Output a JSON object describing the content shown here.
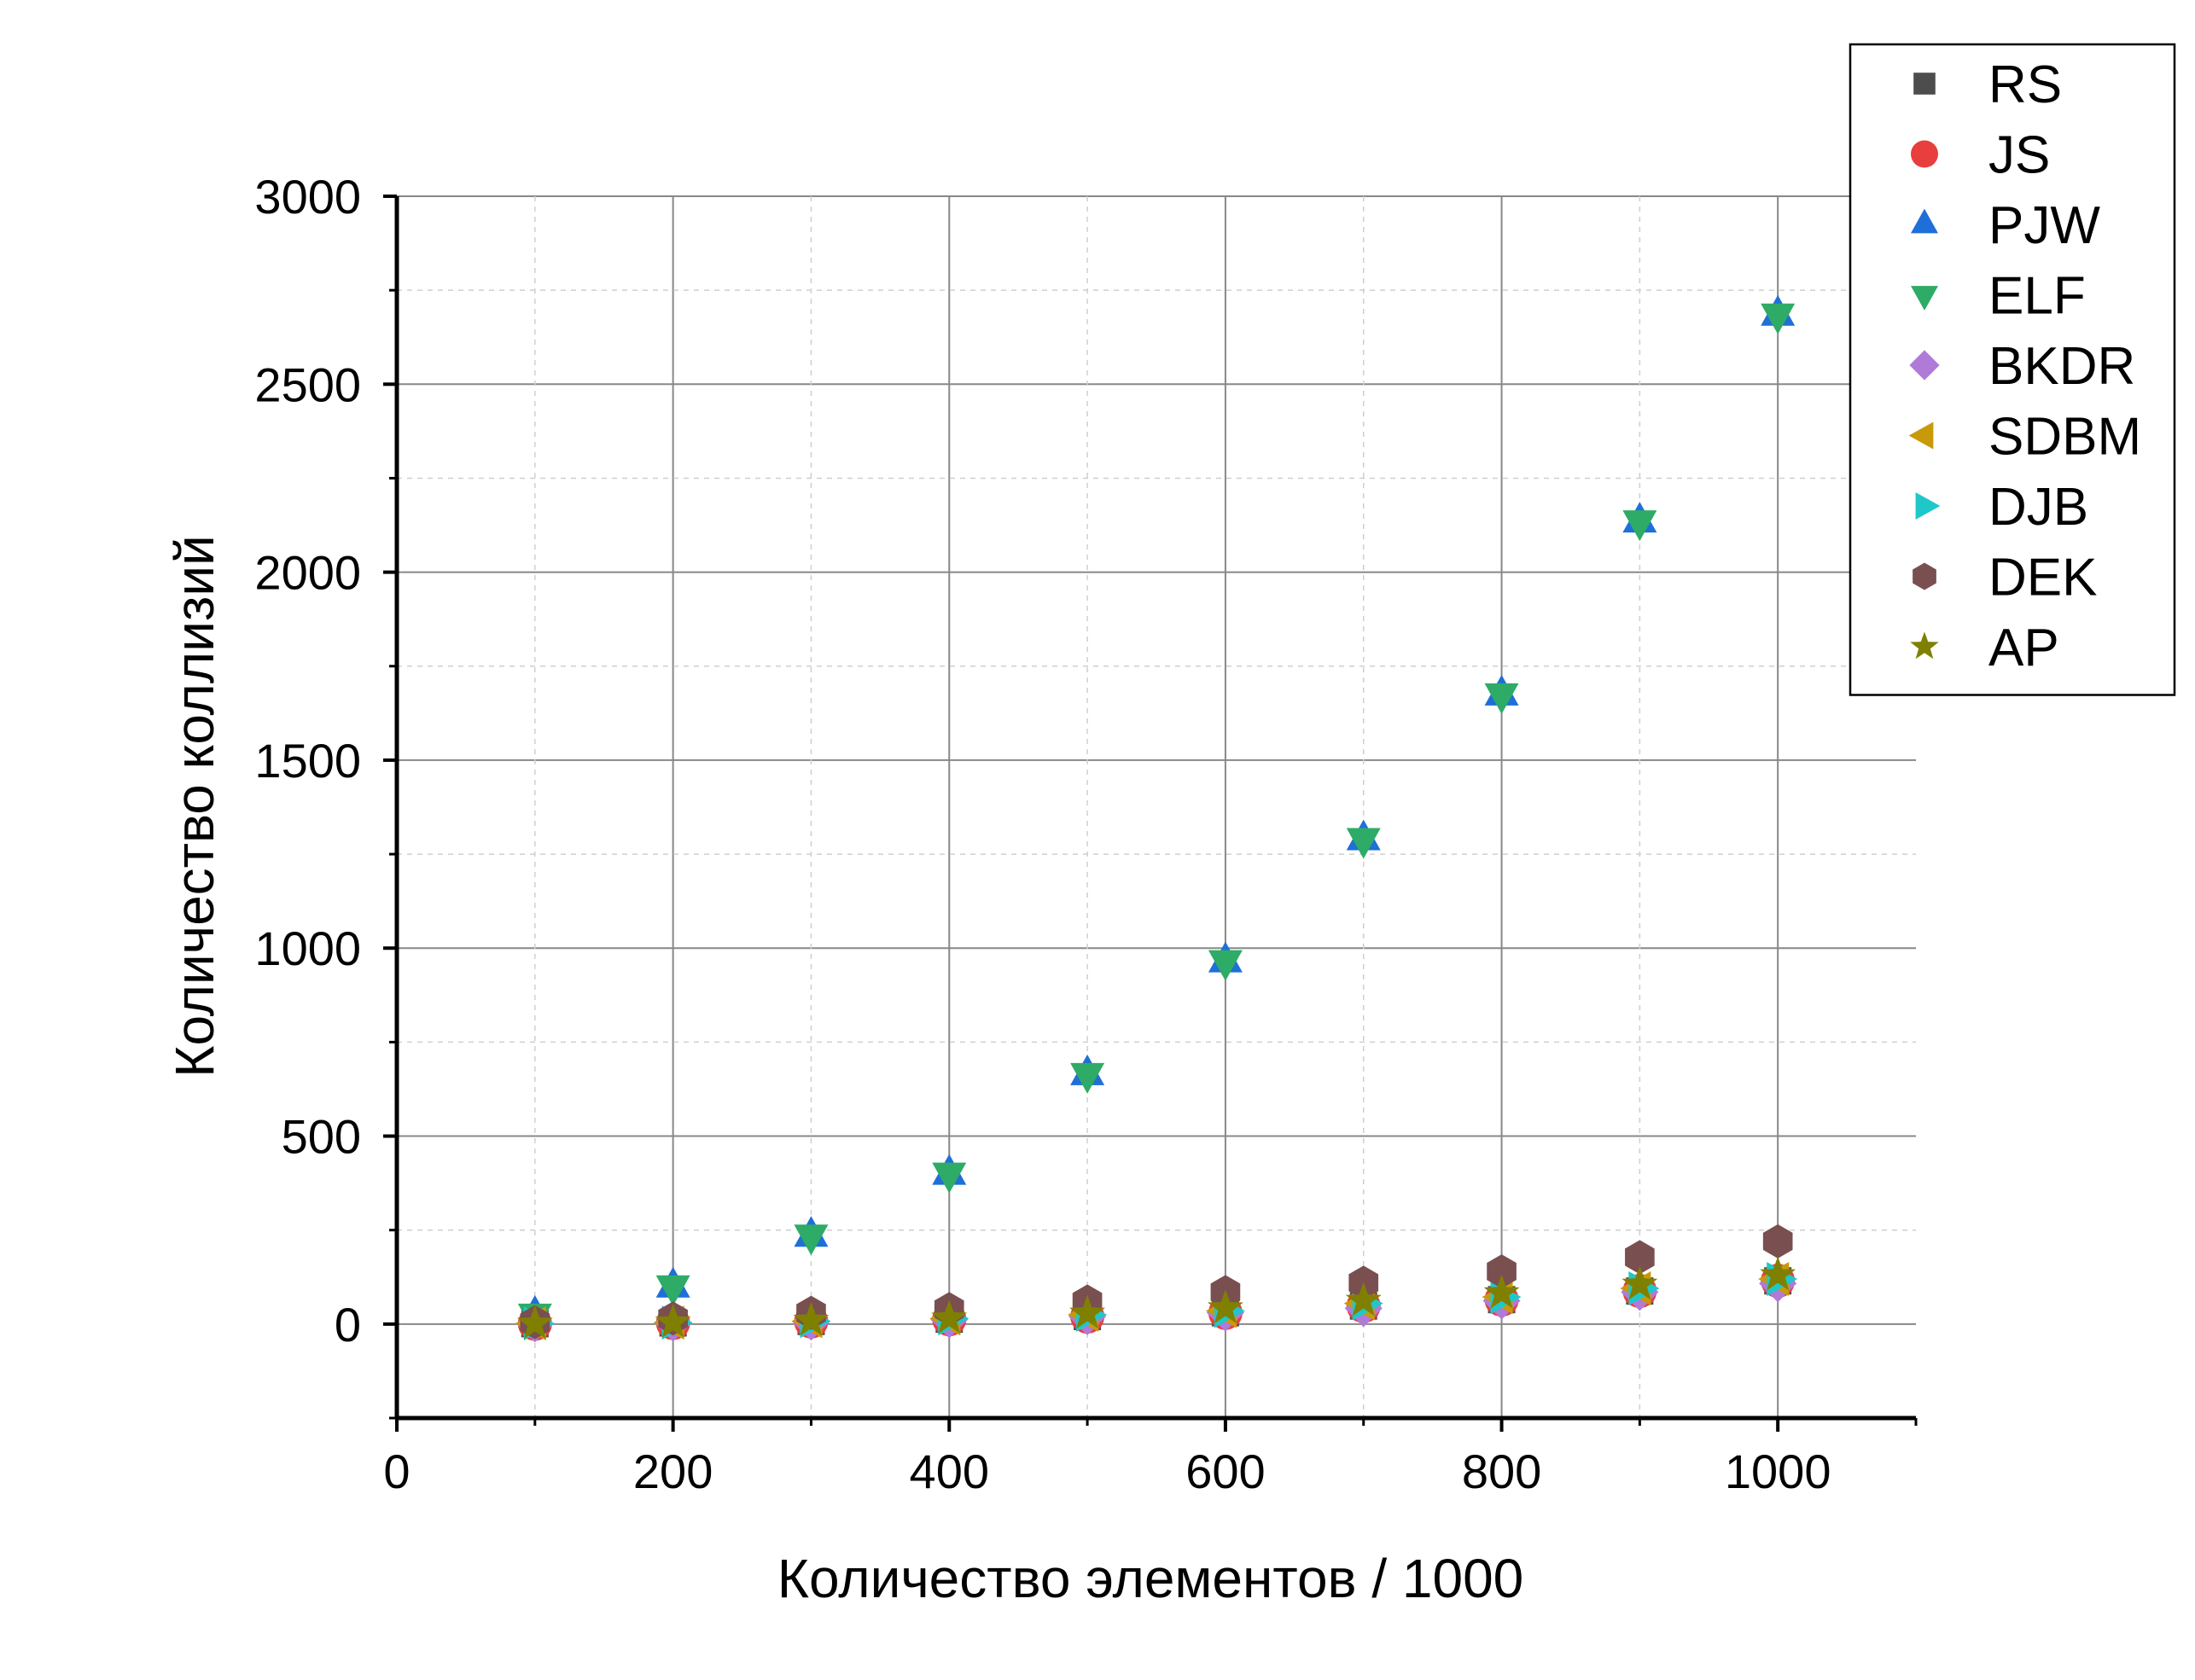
{
  "chart_data": {
    "type": "scatter",
    "title": "",
    "xlabel": "Количество элементов / 1000",
    "ylabel": "Количество коллизий",
    "xlim": [
      0,
      1100
    ],
    "ylim": [
      -250,
      3000
    ],
    "x_ticks": [
      0,
      200,
      400,
      600,
      800,
      1000
    ],
    "y_ticks": [
      0,
      500,
      1000,
      1500,
      2000,
      2500,
      3000
    ],
    "x_tick_labels": [
      "0",
      "200",
      "400",
      "600",
      "800",
      "1000"
    ],
    "y_tick_labels": [
      "0",
      "500",
      "1000",
      "1500",
      "2000",
      "2500",
      "3000"
    ],
    "grid": true,
    "legend_position": "top-right",
    "x": [
      100,
      200,
      300,
      400,
      500,
      600,
      700,
      800,
      900,
      1000
    ],
    "series": [
      {
        "name": "RS",
        "marker": "square",
        "color": "#4d4d4d",
        "values": [
          1,
          3,
          7,
          13,
          20,
          30,
          48,
          65,
          88,
          115
        ]
      },
      {
        "name": "JS",
        "marker": "circle",
        "color": "#e83e3e",
        "values": [
          1,
          3,
          7,
          13,
          20,
          30,
          48,
          65,
          88,
          115
        ]
      },
      {
        "name": "PJW",
        "marker": "triangle-up",
        "color": "#1f6fd8",
        "values": [
          25,
          100,
          235,
          400,
          665,
          965,
          1290,
          1675,
          2135,
          2685
        ]
      },
      {
        "name": "ELF",
        "marker": "triangle-down",
        "color": "#2eab66",
        "values": [
          25,
          100,
          235,
          400,
          665,
          965,
          1290,
          1675,
          2135,
          2685
        ]
      },
      {
        "name": "BKDR",
        "marker": "diamond",
        "color": "#b07ad8",
        "values": [
          1,
          3,
          6,
          12,
          20,
          30,
          42,
          62,
          85,
          108
        ]
      },
      {
        "name": "SDBM",
        "marker": "triangle-left",
        "color": "#c89a0a",
        "values": [
          2,
          4,
          8,
          15,
          25,
          35,
          55,
          72,
          95,
          120
        ]
      },
      {
        "name": "DJB",
        "marker": "triangle-right",
        "color": "#1fc8c8",
        "values": [
          2,
          4,
          8,
          15,
          25,
          35,
          55,
          72,
          95,
          120
        ]
      },
      {
        "name": "DEK",
        "marker": "hexagon",
        "color": "#7a4f4f",
        "values": [
          5,
          15,
          30,
          40,
          60,
          85,
          110,
          140,
          178,
          220
        ]
      },
      {
        "name": "AP",
        "marker": "star",
        "color": "#808000",
        "values": [
          1,
          4,
          9,
          15,
          28,
          42,
          62,
          82,
          105,
          130
        ]
      }
    ]
  }
}
